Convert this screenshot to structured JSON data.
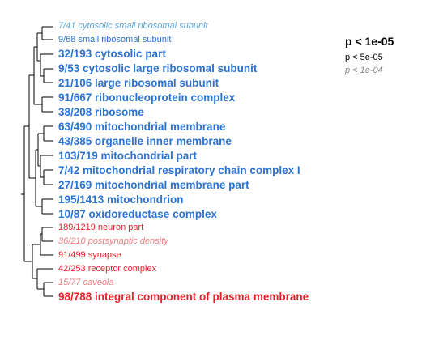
{
  "colors": {
    "group1": "#2b73d3",
    "group1_light": "#5aa6dc",
    "group2": "#e8202a",
    "group2_light": "#ee7b80",
    "tree": "#000000",
    "legend_light": "#888888"
  },
  "legend": [
    {
      "text": "p < 1e-05",
      "level": 1
    },
    {
      "text": "p < 5e-05",
      "level": 2
    },
    {
      "text": "p < 1e-04",
      "level": 3
    }
  ],
  "terms": [
    {
      "text": "7/41 cytosolic small ribosomal subunit",
      "group": 1,
      "level": 3
    },
    {
      "text": "9/68 small ribosomal subunit",
      "group": 1,
      "level": 2
    },
    {
      "text": "32/193 cytosolic part",
      "group": 1,
      "level": 1
    },
    {
      "text": "9/53 cytosolic large ribosomal subunit",
      "group": 1,
      "level": 1
    },
    {
      "text": "21/106 large ribosomal subunit",
      "group": 1,
      "level": 1
    },
    {
      "text": "91/667 ribonucleoprotein complex",
      "group": 1,
      "level": 1
    },
    {
      "text": "38/208 ribosome",
      "group": 1,
      "level": 1
    },
    {
      "text": "63/490 mitochondrial membrane",
      "group": 1,
      "level": 1
    },
    {
      "text": "43/385 organelle inner membrane",
      "group": 1,
      "level": 1
    },
    {
      "text": "103/719 mitochondrial part",
      "group": 1,
      "level": 1
    },
    {
      "text": "7/42 mitochondrial respiratory chain complex I",
      "group": 1,
      "level": 1
    },
    {
      "text": "27/169 mitochondrial membrane part",
      "group": 1,
      "level": 1
    },
    {
      "text": "195/1413 mitochondrion",
      "group": 1,
      "level": 1
    },
    {
      "text": "10/87 oxidoreductase complex",
      "group": 1,
      "level": 1
    },
    {
      "text": "189/1219 neuron part",
      "group": 2,
      "level": 2
    },
    {
      "text": "36/210 postsynaptic density",
      "group": 2,
      "level": 3
    },
    {
      "text": "91/499 synapse",
      "group": 2,
      "level": 2
    },
    {
      "text": "42/253 receptor complex",
      "group": 2,
      "level": 2
    },
    {
      "text": "15/77 caveola",
      "group": 2,
      "level": 3
    },
    {
      "text": "98/788 integral component of plasma membrane",
      "group": 2,
      "level": 1
    }
  ]
}
